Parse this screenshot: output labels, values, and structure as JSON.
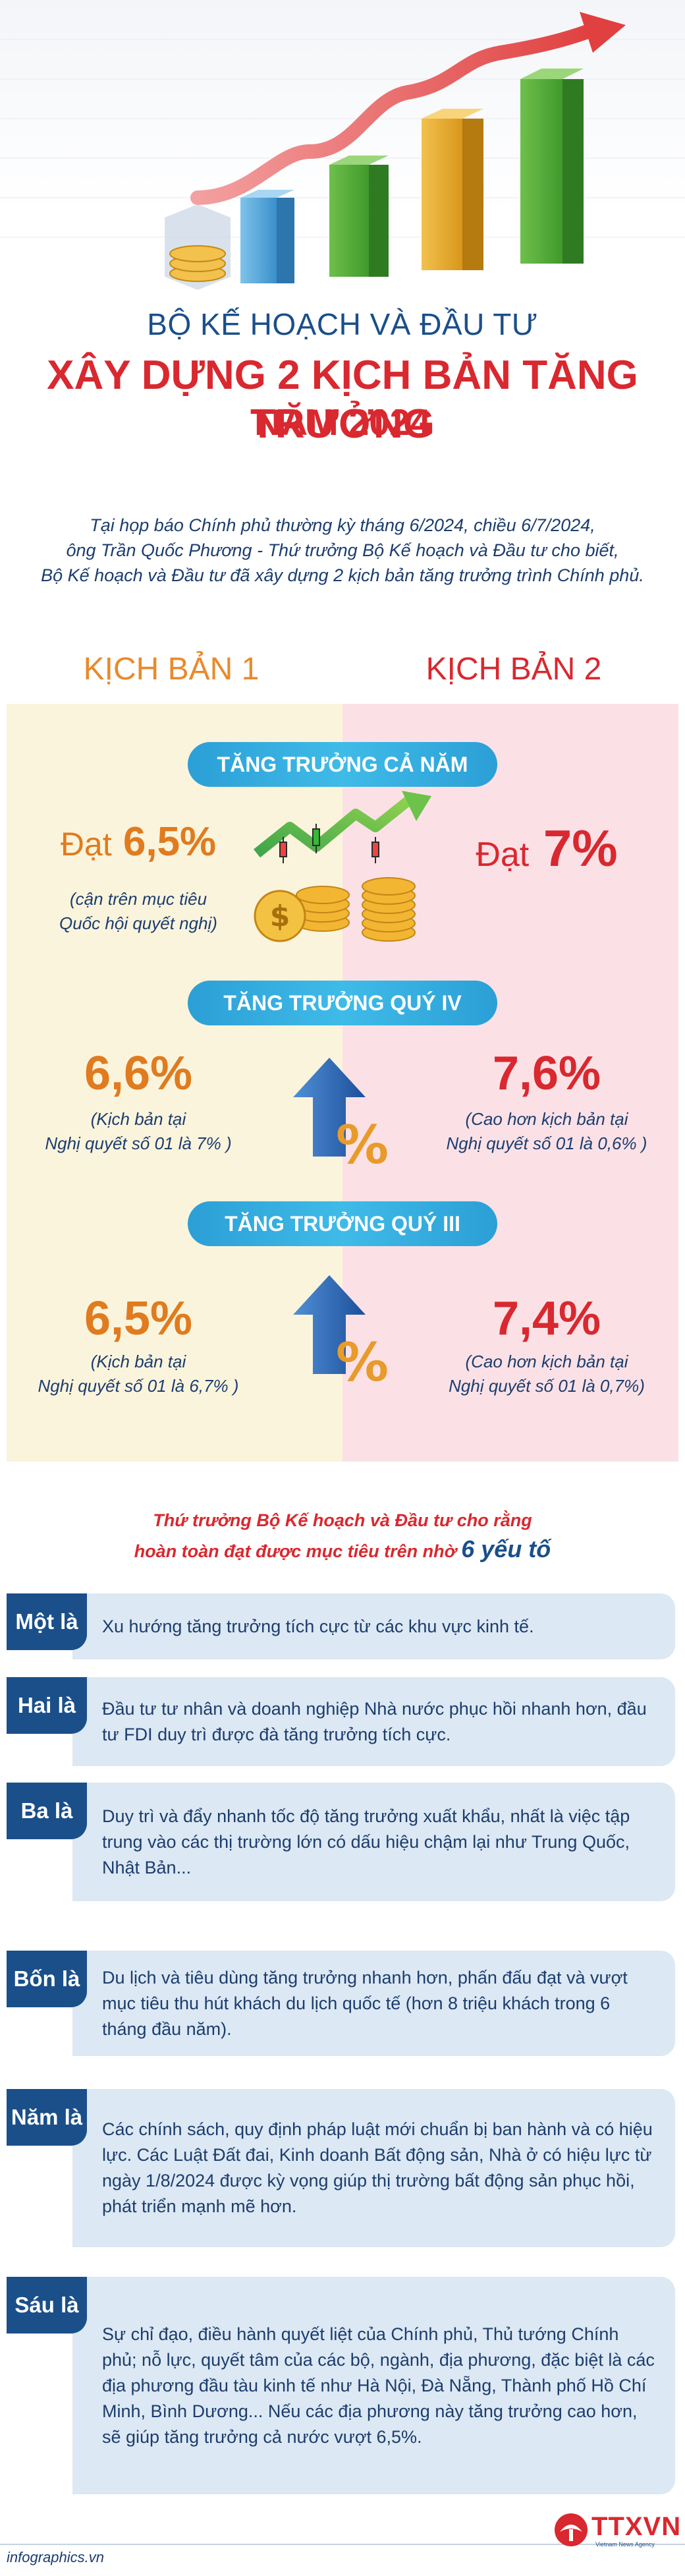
{
  "header": {
    "ministry": "BỘ KẾ HOẠCH VÀ ĐẦU TƯ",
    "headline_line1": "XÂY DỰNG 2 KỊCH BẢN TĂNG TRƯỞNG",
    "headline_line2": "NĂM 2024"
  },
  "intro": {
    "line1": "Tại họp báo Chính phủ thường kỳ tháng 6/2024, chiều 6/7/2024,",
    "line2": "ông Trần Quốc Phương - Thứ trưởng Bộ Kế hoạch và Đầu tư cho biết,",
    "line3": "Bộ Kế hoạch và Đầu tư đã xây dựng 2 kịch bản tăng trưởng trình Chính phủ."
  },
  "scenarios": {
    "scenario1_title": "KỊCH BẢN 1",
    "scenario2_title": "KỊCH BẢN 2"
  },
  "sections": {
    "full_year": {
      "label": "TĂNG TRƯỞNG CẢ NĂM",
      "s1_prefix": "Đạt",
      "s1_value": "6,5%",
      "s1_note_line1": "(cận trên mục tiêu",
      "s1_note_line2": "Quốc hội quyết nghị)",
      "s2_prefix": "Đạt",
      "s2_value": "7%"
    },
    "q4": {
      "label": "TĂNG TRƯỞNG QUÝ IV",
      "s1_value": "6,6%",
      "s1_note_line1": "(Kịch bản tại",
      "s1_note_line2": "Nghị quyết số 01 là 7% )",
      "s2_value": "7,6%",
      "s2_note_line1": "(Cao hơn kịch bản tại",
      "s2_note_line2": "Nghị quyết số 01 là 0,6% )"
    },
    "q3": {
      "label": "TĂNG TRƯỞNG QUÝ III",
      "s1_value": "6,5%",
      "s1_note_line1": "(Kịch bản tại",
      "s1_note_line2": "Nghị quyết số 01 là 6,7% )",
      "s2_value": "7,4%",
      "s2_note_line1": "(Cao hơn kịch bản tại",
      "s2_note_line2": "Nghị quyết số 01 là 0,7%)"
    }
  },
  "factors_intro": {
    "line1": "Thứ trưởng Bộ Kế hoạch và Đầu tư cho rằng",
    "line2_prefix": "hoàn toàn đạt được mục tiêu trên nhờ",
    "line2_emphasis": "6 yếu tố"
  },
  "factors": [
    {
      "tab": "Một là",
      "text": "Xu hướng tăng trưởng tích cực từ các khu vực kinh tế."
    },
    {
      "tab": "Hai là",
      "text": "Đầu tư tư nhân và doanh nghiệp Nhà nước phục hồi nhanh hơn, đầu tư FDI duy trì được đà tăng trưởng tích cực."
    },
    {
      "tab": "Ba là",
      "text": "Duy trì và đẩy nhanh tốc độ tăng trưởng xuất khẩu, nhất là việc tập trung vào các thị trường lớn có dấu hiệu chậm lại như Trung Quốc, Nhật Bản..."
    },
    {
      "tab": "Bốn là",
      "text": "Du lịch và tiêu dùng tăng trưởng nhanh hơn, phấn đấu đạt và vượt mục tiêu thu hút khách du lịch quốc tế (hơn 8 triệu khách trong 6 tháng đầu năm)."
    },
    {
      "tab": "Năm là",
      "text": "Các chính sách, quy định pháp luật mới chuẩn bị ban hành và có hiệu lực. Các Luật Đất đai, Kinh doanh Bất động sản, Nhà ở có hiệu lực từ ngày 1/8/2024 được kỳ vọng giúp thị trường bất động sản phục hồi, phát triển mạnh mẽ hơn."
    },
    {
      "tab": "Sáu là",
      "text": "Sự chỉ đạo, điều hành quyết liệt của Chính phủ, Thủ tướng Chính phủ; nỗ lực, quyết tâm của các bộ, ngành, địa phương, đặc biệt là các địa phương đầu tàu kinh tế như Hà Nội, Đà Nẵng, Thành phố Hồ Chí Minh, Bình Dương... Nếu các địa phương này tăng trưởng cao hơn, sẽ giúp tăng trưởng cả nước vượt 6,5%."
    }
  ],
  "footer": {
    "source": "infographics.vn",
    "logo": "TTXVN",
    "logo_sub": "Vietnam News Agency"
  },
  "colors": {
    "navy": "#1a4f8a",
    "red": "#d9282f",
    "orange": "#e07b1f",
    "pill_blue": "#2b9fd6",
    "left_panel": "#fbf4dc",
    "right_panel": "#fbe1e6",
    "factor_box": "#dce8f3"
  }
}
